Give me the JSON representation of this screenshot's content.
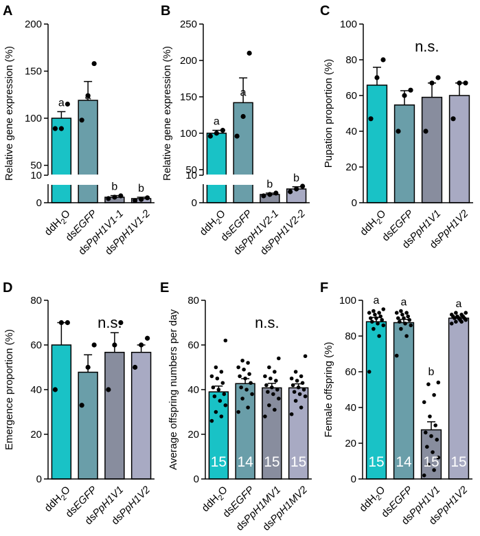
{
  "chart_data": [
    {
      "panel": "A",
      "type": "bar",
      "ylabel": "Relative gene expression (%)",
      "yticks": [
        0,
        10,
        50,
        100,
        150,
        200
      ],
      "axis_break": [
        10,
        30
      ],
      "ylim": [
        0,
        200
      ],
      "categories": [
        {
          "pre": "ddH",
          "sub": "2",
          "post": "O",
          "italic": ""
        },
        {
          "pre": "ds",
          "italic": "EGFP",
          "post": ""
        },
        {
          "pre": "ds",
          "italic": "PpH1V1-1",
          "post": ""
        },
        {
          "pre": "ds",
          "italic": "PpH1V1-2",
          "post": ""
        }
      ],
      "values": [
        100,
        119,
        2,
        1.5
      ],
      "errors": [
        7,
        20,
        0.6,
        0.5
      ],
      "points": [
        [
          89,
          89,
          115
        ],
        [
          98,
          124,
          158
        ],
        [
          1.5,
          2,
          2.5
        ],
        [
          0.8,
          1.2,
          1.8
        ]
      ],
      "sig": [
        "a",
        "a",
        "b",
        "b"
      ],
      "ns": ""
    },
    {
      "panel": "B",
      "type": "bar",
      "ylabel": "Relative gene expression (%)",
      "yticks": [
        0,
        10,
        50,
        100,
        150,
        200,
        250
      ],
      "axis_break": [
        10,
        30
      ],
      "ylim": [
        0,
        250
      ],
      "categories": [
        {
          "pre": "ddH",
          "sub": "2",
          "post": "O",
          "italic": ""
        },
        {
          "pre": "ds",
          "italic": "EGFP",
          "post": ""
        },
        {
          "pre": "ds",
          "italic": "PpH1V2-1",
          "post": ""
        },
        {
          "pre": "ds",
          "italic": "PpH1V2-2",
          "post": ""
        }
      ],
      "values": [
        100,
        142,
        3,
        5
      ],
      "errors": [
        4,
        34,
        0.5,
        0.8
      ],
      "points": [
        [
          96,
          100,
          104
        ],
        [
          96,
          123,
          210
        ],
        [
          2.5,
          3,
          3.5
        ],
        [
          4,
          5,
          6
        ]
      ],
      "sig": [
        "a",
        "a",
        "b",
        "b"
      ],
      "ns": ""
    },
    {
      "panel": "C",
      "type": "bar",
      "ylabel": "Pupation proportion (%)",
      "yticks": [
        0,
        20,
        40,
        60,
        80,
        100
      ],
      "ylim": [
        0,
        100
      ],
      "categories": [
        {
          "pre": "ddH",
          "sub": "2",
          "post": "O",
          "italic": ""
        },
        {
          "pre": "ds",
          "italic": "EGFP",
          "post": ""
        },
        {
          "pre": "ds",
          "italic": "PpH1V1",
          "post": ""
        },
        {
          "pre": "ds",
          "italic": "PpH1V2",
          "post": ""
        }
      ],
      "values": [
        65.8,
        54.7,
        59,
        60
      ],
      "errors": [
        10,
        8,
        8,
        7
      ],
      "points": [
        [
          47,
          70,
          80
        ],
        [
          40,
          60,
          63
        ],
        [
          40,
          67,
          70
        ],
        [
          47,
          67,
          67
        ]
      ],
      "sig": [],
      "ns": "n.s."
    },
    {
      "panel": "D",
      "type": "bar",
      "ylabel": "Emergence proportion (%)",
      "yticks": [
        0,
        20,
        40,
        60,
        80
      ],
      "ylim": [
        0,
        80
      ],
      "categories": [
        {
          "pre": "ddH",
          "sub": "2",
          "post": "O",
          "italic": ""
        },
        {
          "pre": "ds",
          "italic": "EGFP",
          "post": ""
        },
        {
          "pre": "ds",
          "italic": "PpH1V1",
          "post": ""
        },
        {
          "pre": "ds",
          "italic": "PpH1V2",
          "post": ""
        }
      ],
      "values": [
        60,
        47.8,
        56.7,
        56.7
      ],
      "errors": [
        10,
        7.8,
        8.8,
        3.3
      ],
      "points": [
        [
          40,
          70,
          70
        ],
        [
          33,
          50,
          60
        ],
        [
          40,
          60,
          70
        ],
        [
          50,
          60,
          63
        ]
      ],
      "sig": [],
      "ns": "n.s."
    },
    {
      "panel": "E",
      "type": "bar",
      "ylabel": "Average offspring numbers per day",
      "yticks": [
        0,
        20,
        40,
        60,
        80
      ],
      "ylim": [
        0,
        80
      ],
      "categories": [
        {
          "pre": "ddH",
          "sub": "2",
          "post": "O",
          "italic": ""
        },
        {
          "pre": "ds",
          "italic": "EGFP",
          "post": ""
        },
        {
          "pre": "ds",
          "italic": "PpH1MV1",
          "post": ""
        },
        {
          "pre": "ds",
          "italic": "PpH1MV2",
          "post": ""
        }
      ],
      "values": [
        39,
        42.7,
        40.8,
        40.8
      ],
      "errors": [
        2.6,
        2.2,
        2.0,
        1.8
      ],
      "points": [
        [
          26,
          28,
          30,
          33,
          35,
          37,
          38,
          40,
          41,
          43,
          45,
          46,
          48,
          50,
          62
        ],
        [
          30,
          32,
          36,
          38,
          40,
          41,
          43,
          45,
          46,
          47,
          49,
          50,
          52,
          53
        ],
        [
          28,
          31,
          33,
          36,
          38,
          39,
          40,
          41,
          42,
          44,
          45,
          46,
          48,
          50,
          54
        ],
        [
          29,
          32,
          35,
          37,
          38,
          39,
          40,
          41,
          42,
          43,
          44,
          45,
          46,
          48,
          55
        ]
      ],
      "n": [
        "15",
        "14",
        "15",
        "15"
      ],
      "sig": [],
      "ns": "n.s."
    },
    {
      "panel": "F",
      "type": "bar",
      "ylabel": "Female offspring (%)",
      "yticks": [
        0,
        20,
        40,
        60,
        80,
        100
      ],
      "ylim": [
        0,
        100
      ],
      "categories": [
        {
          "pre": "ddH",
          "sub": "2",
          "post": "O",
          "italic": ""
        },
        {
          "pre": "ds",
          "italic": "EGFP",
          "post": ""
        },
        {
          "pre": "ds",
          "italic": "PpH1V1",
          "post": ""
        },
        {
          "pre": "ds",
          "italic": "PpH1V2",
          "post": ""
        }
      ],
      "values": [
        88,
        87.5,
        27.5,
        90
      ],
      "errors": [
        2.4,
        1.8,
        4.5,
        0.7
      ],
      "points": [
        [
          60,
          80,
          84,
          86,
          87,
          88,
          89,
          90,
          90,
          91,
          92,
          93,
          93,
          94,
          95
        ],
        [
          69,
          80,
          84,
          86,
          87,
          88,
          89,
          90,
          90,
          91,
          92,
          93,
          93,
          94
        ],
        [
          2,
          5,
          8,
          12,
          15,
          18,
          22,
          24,
          26,
          30,
          35,
          43,
          47,
          53,
          54
        ],
        [
          87,
          88,
          88,
          89,
          89,
          90,
          90,
          90,
          91,
          91,
          91,
          92,
          92,
          93,
          93
        ]
      ],
      "n": [
        "15",
        "14",
        "15",
        "15"
      ],
      "sig": [
        "a",
        "a",
        "b",
        "a"
      ],
      "ns": ""
    }
  ],
  "colors": [
    "#19c2c6",
    "#6a9ea9",
    "#888d9e",
    "#a8aac3"
  ]
}
